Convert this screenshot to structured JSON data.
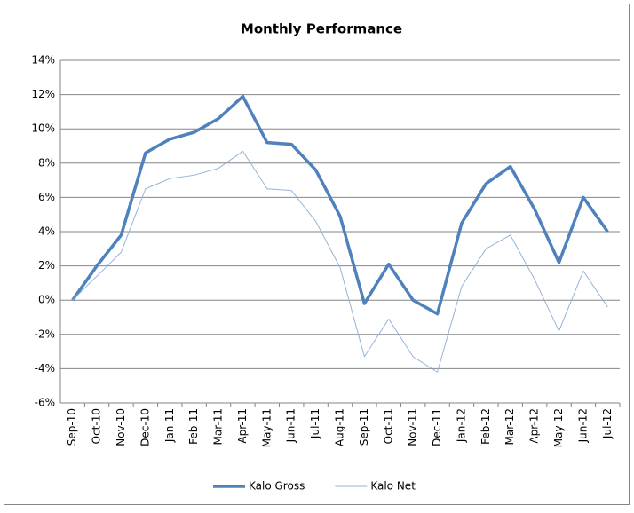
{
  "chart_data": {
    "type": "line",
    "title": "Monthly Performance",
    "categories": [
      "Sep-10",
      "Oct-10",
      "Nov-10",
      "Dec-10",
      "Jan-11",
      "Feb-11",
      "Mar-11",
      "Apr-11",
      "May-11",
      "Jun-11",
      "Jul-11",
      "Aug-11",
      "Sep-11",
      "Oct-11",
      "Nov-11",
      "Dec-11",
      "Jan-12",
      "Feb-12",
      "Mar-12",
      "Apr-12",
      "May-12",
      "Jun-12",
      "Jul-12"
    ],
    "series": [
      {
        "name": "Kalo Gross",
        "color": "#4f81bd",
        "values": [
          0,
          2.0,
          3.8,
          8.6,
          9.4,
          9.8,
          10.6,
          11.9,
          9.2,
          9.1,
          7.6,
          4.9,
          -0.2,
          2.1,
          0,
          -0.8,
          4.5,
          6.8,
          7.8,
          5.3,
          2.2,
          6.0,
          4.0
        ]
      },
      {
        "name": "Kalo Net",
        "color": "#95b3d7",
        "values": [
          0,
          1.4,
          2.8,
          6.5,
          7.1,
          7.3,
          7.7,
          8.7,
          6.5,
          6.4,
          4.6,
          1.9,
          -3.3,
          -1.1,
          -3.3,
          -4.2,
          0.8,
          3.0,
          3.8,
          1.2,
          -1.8,
          1.7,
          -0.4
        ]
      }
    ],
    "ylim": [
      -6,
      14
    ],
    "yticks": [
      {
        "value": -6,
        "label": "-6%"
      },
      {
        "value": -4,
        "label": "-4%"
      },
      {
        "value": -2,
        "label": "-2%"
      },
      {
        "value": 0,
        "label": "0%"
      },
      {
        "value": 2,
        "label": "2%"
      },
      {
        "value": 4,
        "label": "4%"
      },
      {
        "value": 6,
        "label": "6%"
      },
      {
        "value": 8,
        "label": "8%"
      },
      {
        "value": 10,
        "label": "10%"
      },
      {
        "value": 12,
        "label": "12%"
      },
      {
        "value": 14,
        "label": "14%"
      }
    ],
    "grid": true,
    "legend": "bottom"
  }
}
